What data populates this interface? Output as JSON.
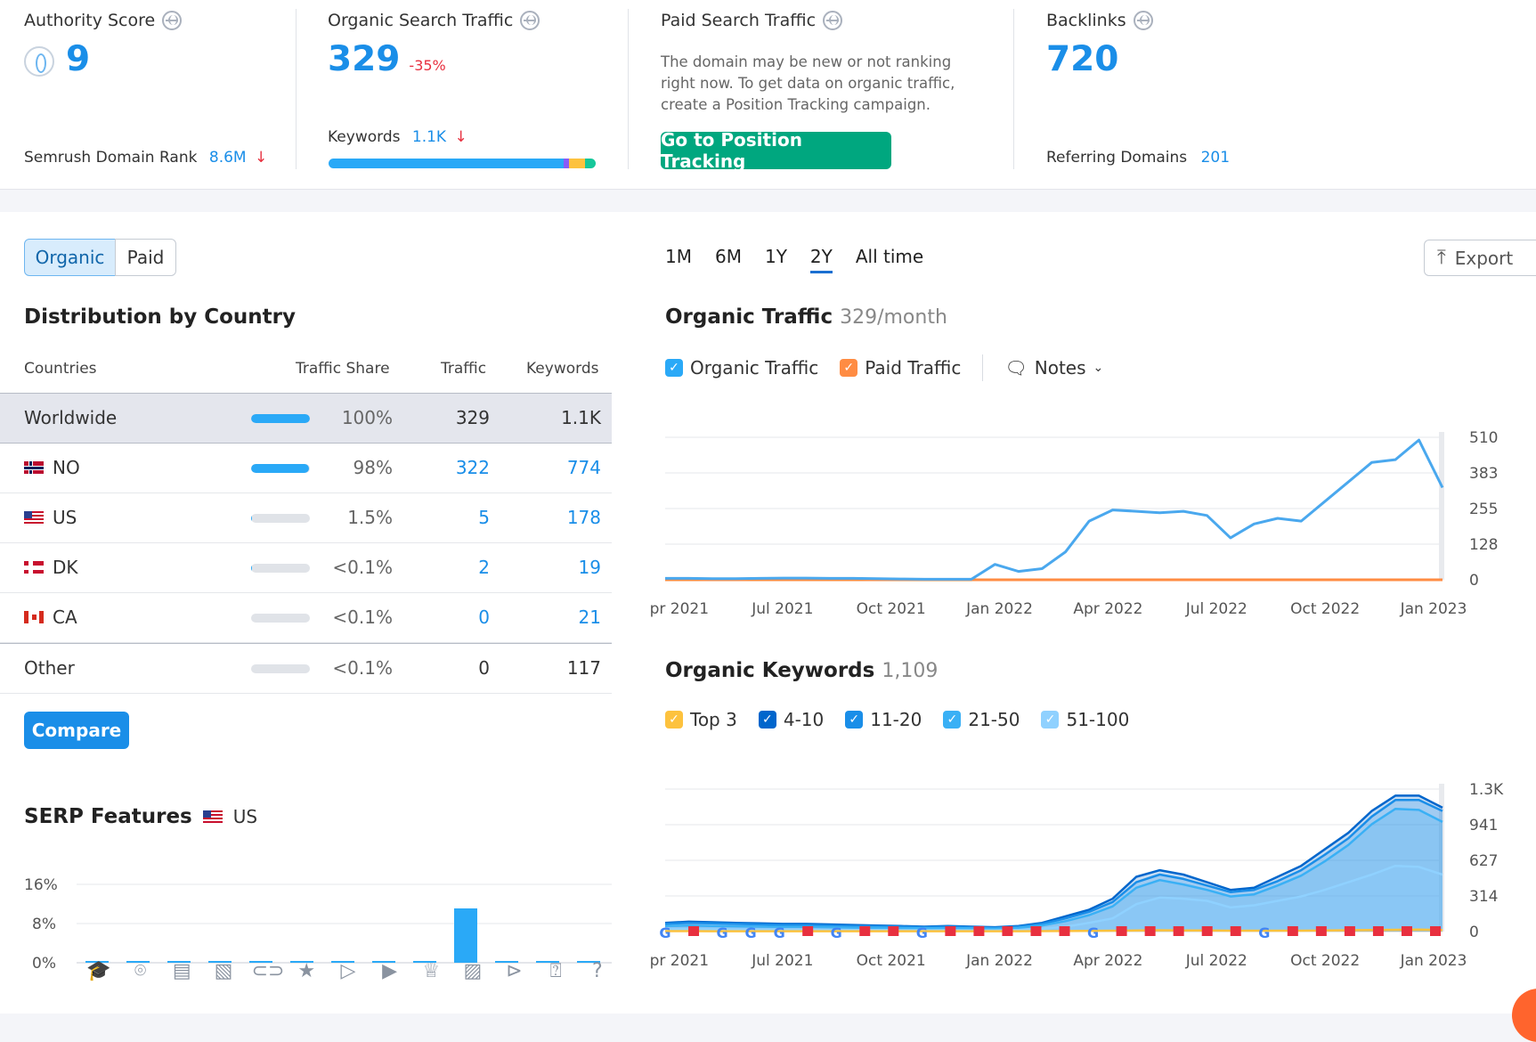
{
  "summary": {
    "authority_score": {
      "title": "Authority Score",
      "value": "9",
      "rank_label": "Semrush Domain Rank",
      "rank_value": "8.6M",
      "rank_trend": "↓"
    },
    "organic_search": {
      "title": "Organic Search Traffic",
      "value": "329",
      "change": "-35%",
      "keywords_label": "Keywords",
      "keywords_value": "1.1K",
      "keywords_trend": "↓"
    },
    "paid_search": {
      "title": "Paid Search Traffic",
      "message_lines": [
        "The domain may be new or not ranking",
        "right now. To get data on organic traffic,",
        "create a Position Tracking campaign."
      ],
      "button": "Go to Position Tracking"
    },
    "backlinks": {
      "title": "Backlinks",
      "value": "720",
      "referring_label": "Referring Domains",
      "referring_value": "201"
    }
  },
  "toggle": {
    "organic": "Organic",
    "paid": "Paid",
    "active": "Organic"
  },
  "distribution": {
    "title": "Distribution by Country",
    "headers": {
      "countries": "Countries",
      "share": "Traffic Share",
      "traffic": "Traffic",
      "keywords": "Keywords"
    },
    "rows": [
      {
        "name": "Worldwide",
        "flag": "",
        "share_pct": 100,
        "share": "100%",
        "traffic": "329",
        "keywords": "1.1K",
        "linked": false
      },
      {
        "name": "NO",
        "flag": "no",
        "share_pct": 98,
        "share": "98%",
        "traffic": "322",
        "keywords": "774",
        "linked": true
      },
      {
        "name": "US",
        "flag": "us",
        "share_pct": 1.5,
        "share": "1.5%",
        "traffic": "5",
        "keywords": "178",
        "linked": true
      },
      {
        "name": "DK",
        "flag": "dk",
        "share_pct": 0.1,
        "share": "<0.1%",
        "traffic": "2",
        "keywords": "19",
        "linked": true
      },
      {
        "name": "CA",
        "flag": "ca",
        "share_pct": 0,
        "share": "<0.1%",
        "traffic": "0",
        "keywords": "21",
        "linked": true
      },
      {
        "name": "Other",
        "flag": "",
        "share_pct": 0,
        "share": "<0.1%",
        "traffic": "0",
        "keywords": "117",
        "linked": false
      }
    ],
    "compare_button": "Compare"
  },
  "serp": {
    "title": "SERP Features",
    "country": "US",
    "icons": [
      "graduation-cap-icon",
      "map-pin-icon",
      "news-icon",
      "image-pack-icon",
      "link-icon",
      "star-icon",
      "video-icon",
      "video-carousel-icon",
      "crown-icon",
      "image-icon",
      "play-icon",
      "faq-icon",
      "question-icon"
    ]
  },
  "periods": {
    "items": [
      "1M",
      "6M",
      "1Y",
      "2Y",
      "All time"
    ],
    "active": "2Y"
  },
  "export_button": "Export",
  "traffic_chart_header": {
    "title": "Organic Traffic",
    "subtitle": "329/month",
    "legend": [
      "Organic Traffic",
      "Paid Traffic"
    ],
    "notes": "Notes"
  },
  "keywords_chart_header": {
    "title": "Organic Keywords",
    "subtitle": "1,109",
    "legend": [
      "Top 3",
      "4-10",
      "11-20",
      "21-50",
      "51-100"
    ]
  },
  "colors": {
    "accent": "#1a8ee8",
    "organic": "#2aa9f7",
    "paid": "#ff8c43",
    "top3": "#fdc23e",
    "pos4_10": "#0066cc",
    "pos11_20": "#1a8ee8",
    "pos21_50": "#3ab0f5",
    "pos51_100": "#8fd1ff",
    "green_button": "#00a77f",
    "down": "#e8303f"
  },
  "chart_data": [
    {
      "type": "line",
      "title": "Organic Traffic",
      "x_ticks": [
        "Apr 2021",
        "Jul 2021",
        "Oct 2021",
        "Jan 2022",
        "Apr 2022",
        "Jul 2022",
        "Oct 2022",
        "Jan 2023"
      ],
      "y_ticks": [
        "0",
        "128",
        "255",
        "383",
        "510"
      ],
      "ylim": [
        0,
        510
      ],
      "series": [
        {
          "name": "Organic Traffic",
          "values": [
            5,
            5,
            4,
            4,
            5,
            6,
            6,
            5,
            5,
            4,
            3,
            2,
            2,
            2,
            55,
            30,
            40,
            100,
            210,
            250,
            245,
            240,
            245,
            230,
            150,
            200,
            220,
            210,
            280,
            350,
            420,
            430,
            500,
            330
          ]
        },
        {
          "name": "Paid Traffic",
          "values": [
            0,
            0,
            0,
            0,
            0,
            0,
            0,
            0,
            0,
            0,
            0,
            0,
            0,
            0,
            0,
            0,
            0,
            0,
            0,
            0,
            0,
            0,
            0,
            0,
            0,
            0,
            0,
            0,
            0,
            0,
            0,
            0,
            0,
            0
          ]
        }
      ]
    },
    {
      "type": "area",
      "title": "Organic Keywords",
      "x_ticks": [
        "Apr 2021",
        "Jul 2021",
        "Oct 2021",
        "Jan 2022",
        "Apr 2022",
        "Jul 2022",
        "Oct 2022",
        "Jan 2023"
      ],
      "y_ticks": [
        "0",
        "314",
        "627",
        "941",
        "1.3K"
      ],
      "ylim": [
        0,
        1300
      ],
      "series": [
        {
          "name": "Top 3",
          "values": [
            4,
            4,
            3,
            3,
            3,
            3,
            3,
            3,
            3,
            3,
            3,
            3,
            3,
            3,
            3,
            3,
            4,
            5,
            6,
            8,
            10,
            12,
            10,
            10,
            8,
            8,
            8,
            8,
            10,
            12,
            14,
            16,
            18,
            14
          ]
        },
        {
          "name": "4-10",
          "values": [
            80,
            90,
            85,
            80,
            75,
            70,
            70,
            65,
            60,
            55,
            50,
            45,
            50,
            45,
            40,
            50,
            80,
            140,
            200,
            300,
            500,
            560,
            520,
            450,
            380,
            400,
            500,
            600,
            750,
            900,
            1100,
            1240,
            1240,
            1130
          ]
        },
        {
          "name": "11-20",
          "values": [
            70,
            80,
            75,
            70,
            65,
            60,
            60,
            55,
            50,
            48,
            45,
            40,
            45,
            40,
            35,
            45,
            70,
            120,
            180,
            270,
            450,
            520,
            480,
            420,
            360,
            380,
            460,
            560,
            700,
            850,
            1050,
            1200,
            1200,
            1100
          ]
        },
        {
          "name": "21-50",
          "values": [
            50,
            55,
            50,
            48,
            45,
            42,
            42,
            40,
            36,
            34,
            32,
            30,
            32,
            30,
            28,
            35,
            55,
            95,
            150,
            230,
            400,
            470,
            430,
            380,
            320,
            340,
            420,
            510,
            640,
            790,
            980,
            1120,
            1110,
            1000
          ]
        },
        {
          "name": "51-100",
          "values": [
            20,
            22,
            20,
            18,
            17,
            16,
            16,
            15,
            14,
            13,
            12,
            11,
            12,
            11,
            10,
            15,
            25,
            45,
            80,
            120,
            250,
            310,
            300,
            280,
            220,
            240,
            280,
            320,
            380,
            450,
            520,
            600,
            590,
            520
          ]
        }
      ],
      "markers": [
        "google",
        "flag",
        "google",
        "google",
        "google",
        "flag",
        "google",
        "flag",
        "flag",
        "google",
        "flag",
        "flag",
        "flag",
        "flag",
        "flag",
        "google",
        "flag",
        "flag",
        "flag",
        "flag",
        "flag",
        "google",
        "flag",
        "flag",
        "flag",
        "flag",
        "flag",
        "flag"
      ]
    }
  ]
}
